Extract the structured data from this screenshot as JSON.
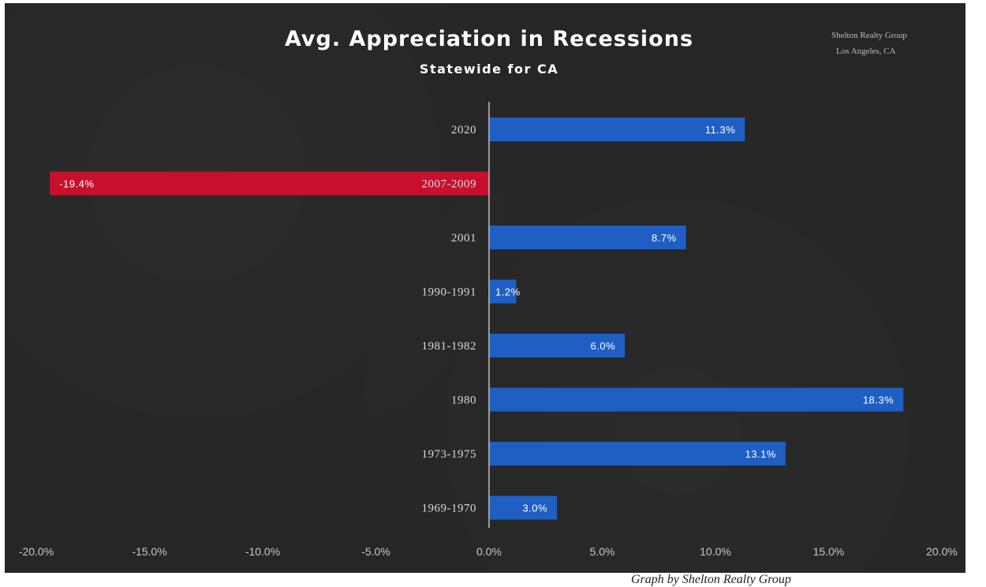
{
  "chart_data": {
    "type": "bar",
    "orientation": "horizontal",
    "title": "Avg. Appreciation in Recessions",
    "subtitle": "Statewide for CA",
    "watermark": [
      "Shelton Realty Group",
      "Los Angeles, CA"
    ],
    "categories": [
      "2020",
      "2007-2009",
      "2001",
      "1990-1991",
      "1981-1982",
      "1980",
      "1973-1975",
      "1969-1970"
    ],
    "values": [
      11.3,
      -19.4,
      8.7,
      1.2,
      6.0,
      18.3,
      13.1,
      3.0
    ],
    "data_labels": [
      "11.3%",
      "-19.4%",
      "8.7%",
      "1.2%",
      "6.0%",
      "18.3%",
      "13.1%",
      "3.0%"
    ],
    "xlim": [
      -20,
      20
    ],
    "x_ticks": [
      -20,
      -15,
      -10,
      -5,
      0,
      5,
      10,
      15,
      20
    ],
    "x_tick_labels": [
      "-20.0%",
      "-15.0%",
      "-10.0%",
      "-5.0%",
      "0.0%",
      "5.0%",
      "10.0%",
      "15.0%",
      "20.0%"
    ],
    "colors": {
      "positive": "#1f5fc4",
      "negative": "#c8102e",
      "background": "#262626",
      "axis": "#bfbfbf"
    },
    "grid": false,
    "legend": "none"
  },
  "footer": {
    "credit": "Graph by Shelton Realty Group"
  }
}
